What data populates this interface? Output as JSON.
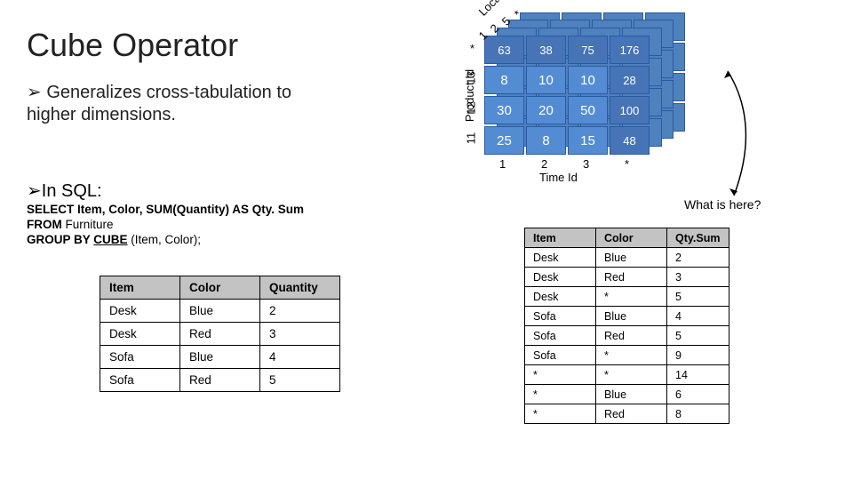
{
  "title": "Cube Operator",
  "bullet": "Generalizes cross-tabulation to higher dimensions.",
  "sql_heading": "In SQL:",
  "sql": {
    "l1_pre": "SELECT Item, Color, SUM(Quantity) AS Qty. Sum",
    "l2": "FROM",
    "l2v": " Furniture",
    "l3a": "GROUP BY ",
    "l3b": "CUBE",
    "l3c": " (Item, Color);"
  },
  "table_left": {
    "headers": [
      "Item",
      "Color",
      "Quantity"
    ],
    "rows": [
      [
        "Desk",
        "Blue",
        "2"
      ],
      [
        "Desk",
        "Red",
        "3"
      ],
      [
        "Sofa",
        "Blue",
        "4"
      ],
      [
        "Sofa",
        "Red",
        "5"
      ]
    ]
  },
  "table_right": {
    "headers": [
      "Item",
      "Color",
      "Qty.Sum"
    ],
    "rows": [
      [
        "Desk",
        "Blue",
        "2"
      ],
      [
        "Desk",
        "Red",
        "3"
      ],
      [
        "Desk",
        "*",
        "5"
      ],
      [
        "Sofa",
        "Blue",
        "4"
      ],
      [
        "Sofa",
        "Red",
        "5"
      ],
      [
        "Sofa",
        "*",
        "9"
      ],
      [
        "*",
        "*",
        "14"
      ],
      [
        "*",
        "Blue",
        "6"
      ],
      [
        "*",
        "Red",
        "8"
      ]
    ]
  },
  "cube": {
    "front": [
      [
        "63",
        "38",
        "75",
        "176"
      ],
      [
        "8",
        "10",
        "10",
        "28"
      ],
      [
        "30",
        "20",
        "50",
        "100"
      ],
      [
        "25",
        "8",
        "15",
        "48"
      ]
    ],
    "time_axis_label": "Time Id",
    "time_ticks": [
      "1",
      "2",
      "3",
      "*"
    ],
    "product_axis_label": "Product Id",
    "product_ticks": [
      "*",
      "13",
      "12",
      "11"
    ],
    "location_axis_label": "Location Id",
    "location_ticks": [
      "1",
      "2",
      "5",
      "*"
    ]
  },
  "what_here": "What is here?"
}
